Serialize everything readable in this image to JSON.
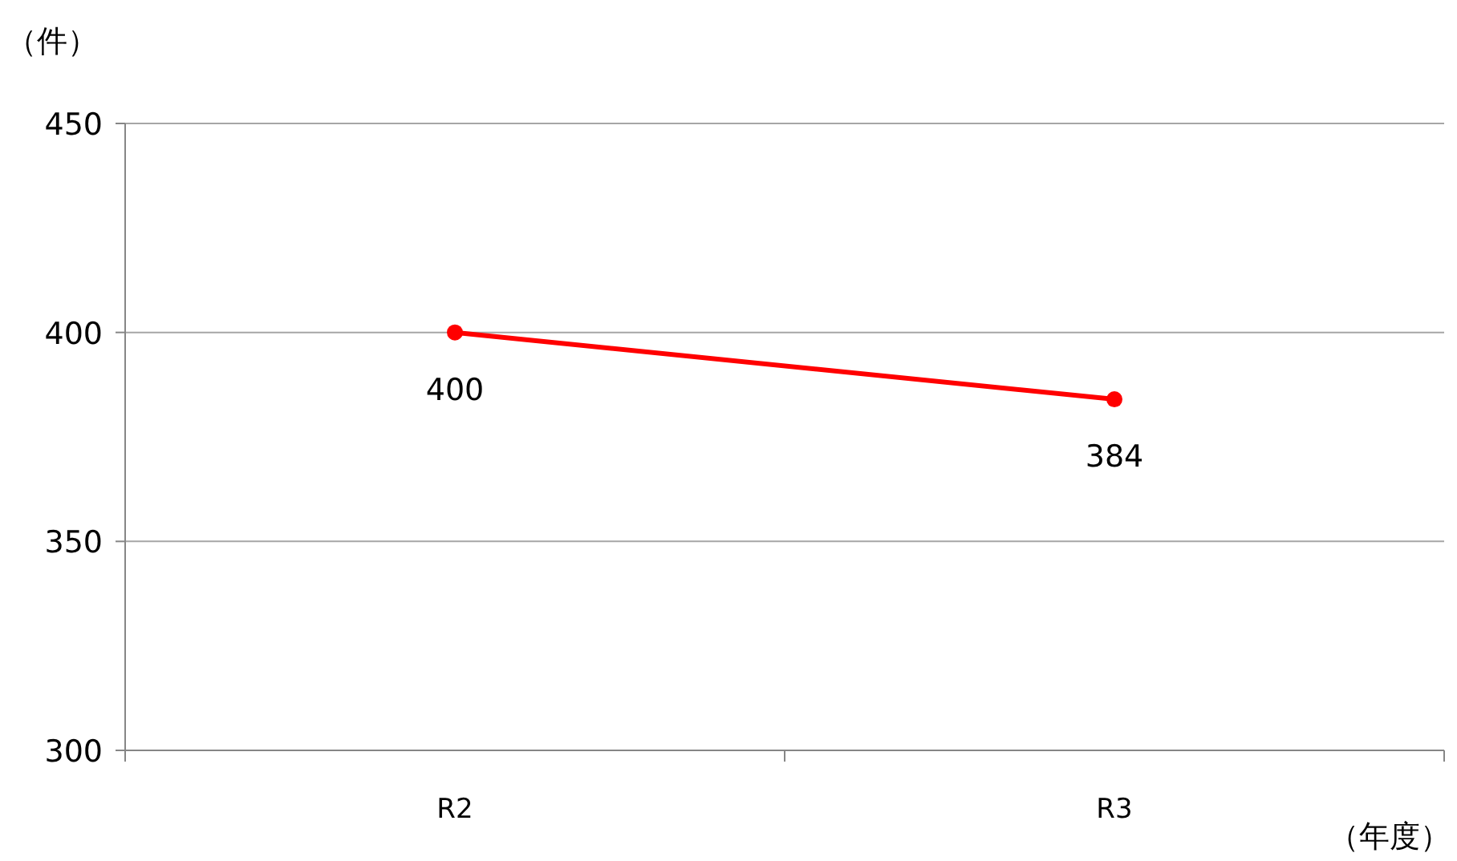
{
  "chart_data": {
    "type": "line",
    "ylabel": "（件）",
    "xlabel": "（年度）",
    "categories": [
      "R2",
      "R3"
    ],
    "series": [
      {
        "color": "#ff0000",
        "values": [
          400,
          384
        ]
      }
    ],
    "ylim": [
      300,
      450
    ],
    "yticks": [
      300,
      350,
      400,
      450
    ],
    "grid": "y",
    "marker": "circle",
    "data_labels": true
  }
}
